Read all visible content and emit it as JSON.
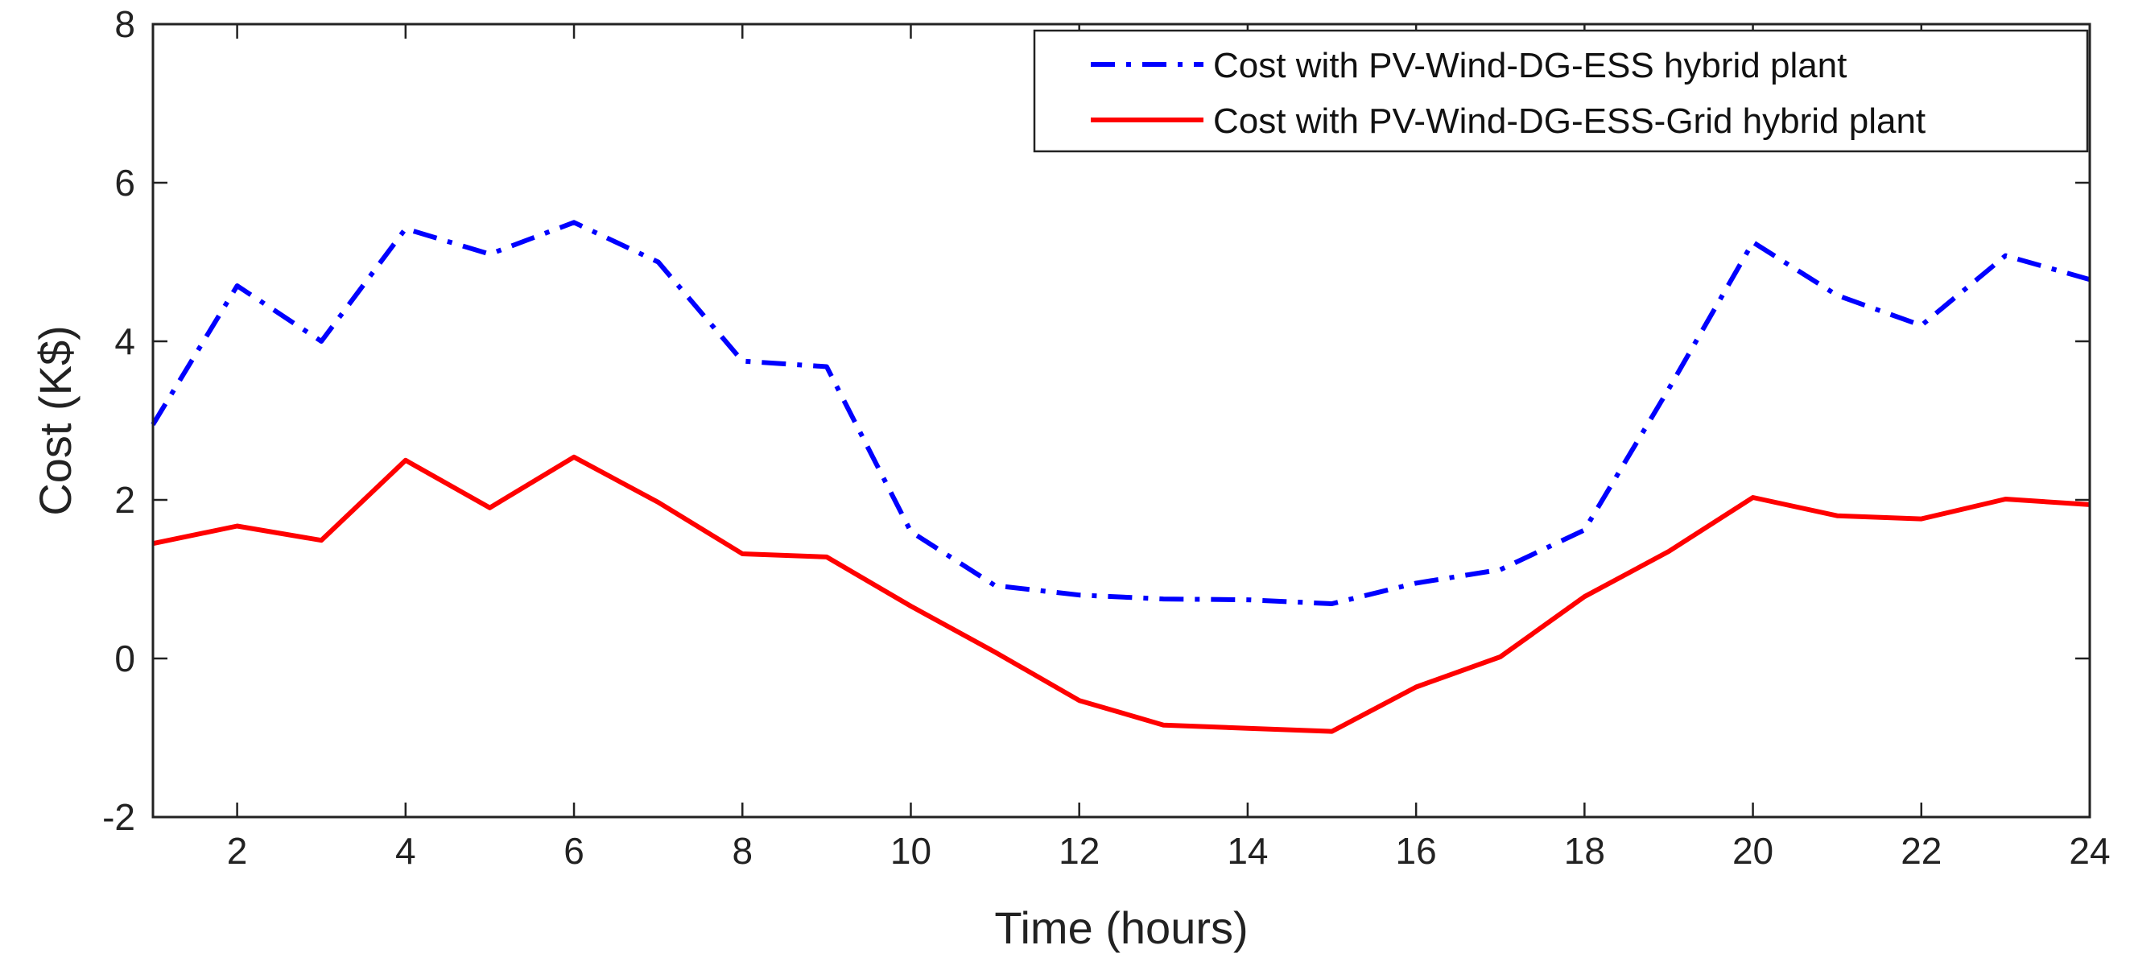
{
  "chart_data": {
    "type": "line",
    "title": "",
    "xlabel": "Time (hours)",
    "ylabel": "Cost (K$)",
    "xlim": [
      1,
      24
    ],
    "ylim": [
      -2,
      8
    ],
    "xticks": [
      2,
      4,
      6,
      8,
      10,
      12,
      14,
      16,
      18,
      20,
      22,
      24
    ],
    "yticks": [
      -2,
      0,
      2,
      4,
      6,
      8
    ],
    "grid": false,
    "legend_position": "top-right",
    "x": [
      1,
      2,
      3,
      4,
      5,
      6,
      7,
      8,
      9,
      10,
      11,
      12,
      13,
      14,
      15,
      16,
      17,
      18,
      19,
      20,
      21,
      22,
      23,
      24
    ],
    "series": [
      {
        "name": "Cost with PV-Wind-DG-ESS hybrid plant",
        "color": "#0000ff",
        "style": "dashdot",
        "values": [
          2.95,
          4.7,
          4.0,
          5.42,
          5.1,
          5.5,
          5.0,
          3.75,
          3.68,
          1.6,
          0.92,
          0.8,
          0.75,
          0.74,
          0.69,
          0.95,
          1.12,
          1.62,
          3.4,
          5.25,
          4.58,
          4.2,
          5.08,
          4.78
        ]
      },
      {
        "name": "Cost with PV-Wind-DG-ESS-Grid hybrid plant",
        "color": "#ff0000",
        "style": "solid",
        "values": [
          1.45,
          1.67,
          1.49,
          2.5,
          1.9,
          2.54,
          1.97,
          1.32,
          1.28,
          0.66,
          0.08,
          -0.53,
          -0.84,
          -0.88,
          -0.92,
          -0.36,
          0.02,
          0.78,
          1.35,
          2.03,
          1.8,
          1.76,
          2.01,
          1.94
        ]
      }
    ]
  }
}
